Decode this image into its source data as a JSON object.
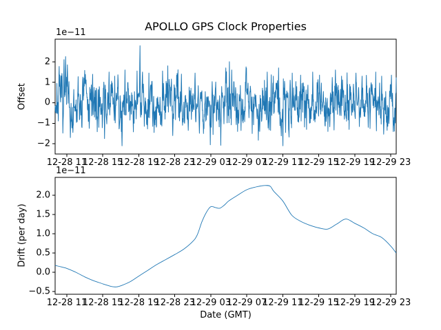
{
  "figure": {
    "background_color": "#ffffff",
    "text_color": "#000000",
    "spine_color": "#000000",
    "series_color": "#1f77b4"
  },
  "chart_data": [
    {
      "type": "line",
      "title": "APOLLO GPS Clock Properties",
      "ylabel": "Offset",
      "scale_label": "1e−11",
      "x_tick_hours": [
        11,
        15,
        19,
        23,
        27,
        31,
        35,
        39,
        43,
        47
      ],
      "x_tick_labels": [
        "12-28 11",
        "12-28 15",
        "12-28 19",
        "12-28 23",
        "12-29 03",
        "12-29 07",
        "12-29 11",
        "12-29 15",
        "12-29 19",
        "12-29 23"
      ],
      "xlim_hours": [
        9.7,
        47.61
      ],
      "ylim": [
        -2.5,
        3.1
      ],
      "y_tick_values": [
        2,
        1,
        0,
        -1,
        -2
      ],
      "y_tick_labels": [
        "2",
        "1",
        "0",
        "−1",
        "−2"
      ],
      "grid": false,
      "series": {
        "style": "noisy",
        "n": 1500,
        "seed": 7,
        "mean": 0.05,
        "ar": 0.6,
        "noise_scale": 0.85,
        "clip": [
          -2.3,
          2.85
        ],
        "spikes": [
          [
            0.026,
            2.1
          ],
          [
            0.031,
            2.25
          ],
          [
            0.036,
            1.85
          ],
          [
            0.045,
            -1.7
          ],
          [
            0.052,
            -1.45
          ],
          [
            0.085,
            1.2
          ],
          [
            0.1,
            -1.25
          ],
          [
            0.128,
            -1.2
          ],
          [
            0.145,
            -1.75
          ],
          [
            0.158,
            1.5
          ],
          [
            0.175,
            1.3
          ],
          [
            0.196,
            -2.1
          ],
          [
            0.205,
            1.6
          ],
          [
            0.24,
            1.55
          ],
          [
            0.2485,
            2.78
          ],
          [
            0.256,
            1.5
          ],
          [
            0.275,
            1.45
          ],
          [
            0.29,
            -1.45
          ],
          [
            0.315,
            1.55
          ],
          [
            0.33,
            1.8
          ],
          [
            0.345,
            -1.6
          ],
          [
            0.37,
            1.4
          ],
          [
            0.39,
            -1.35
          ],
          [
            0.41,
            1.45
          ],
          [
            0.435,
            -1.5
          ],
          [
            0.455,
            -2.05
          ],
          [
            0.463,
            -1.55
          ],
          [
            0.511,
            2.0
          ],
          [
            0.518,
            1.6
          ],
          [
            0.535,
            -1.4
          ],
          [
            0.56,
            1.75
          ],
          [
            0.578,
            -1.5
          ],
          [
            0.6,
            -1.4
          ],
          [
            0.622,
            1.5
          ],
          [
            0.64,
            1.3
          ],
          [
            0.655,
            1.7
          ],
          [
            0.668,
            -2.1
          ],
          [
            0.676,
            -1.45
          ],
          [
            0.695,
            1.45
          ],
          [
            0.72,
            1.35
          ],
          [
            0.737,
            -1.3
          ],
          [
            0.755,
            1.5
          ],
          [
            0.775,
            1.35
          ],
          [
            0.8,
            -1.4
          ],
          [
            0.822,
            1.6
          ],
          [
            0.84,
            1.3
          ],
          [
            0.862,
            -1.3
          ],
          [
            0.882,
            1.45
          ],
          [
            0.9,
            1.3
          ],
          [
            0.918,
            -1.2
          ],
          [
            0.94,
            1.5
          ],
          [
            0.957,
            1.3
          ],
          [
            0.975,
            -1.15
          ],
          [
            0.986,
            1.35
          ]
        ],
        "level_shifts": [
          [
            0.036,
            0.075,
            -0.55
          ],
          [
            0.13,
            0.165,
            -0.35
          ],
          [
            0.425,
            0.465,
            -0.5
          ],
          [
            0.575,
            0.61,
            -0.35
          ],
          [
            0.885,
            0.915,
            -0.3
          ]
        ]
      }
    },
    {
      "type": "line",
      "xlabel": "Date (GMT)",
      "ylabel": "Drift (per day)",
      "scale_label": "1e−11",
      "x_tick_hours": [
        11,
        15,
        19,
        23,
        27,
        31,
        35,
        39,
        43,
        47
      ],
      "x_tick_labels": [
        "12-28 11",
        "12-28 15",
        "12-28 19",
        "12-28 23",
        "12-29 03",
        "12-29 07",
        "12-29 11",
        "12-29 15",
        "12-29 19",
        "12-29 23"
      ],
      "xlim_hours": [
        9.7,
        47.61
      ],
      "ylim": [
        -0.57,
        2.46
      ],
      "y_tick_values": [
        2.0,
        1.5,
        1.0,
        0.5,
        0.0,
        -0.5
      ],
      "y_tick_labels": [
        "2.0",
        "1.5",
        "1.0",
        "0.5",
        "0.0",
        "−0.5"
      ],
      "grid": false,
      "points_hours_value": [
        [
          9.7,
          0.18
        ],
        [
          10,
          0.16
        ],
        [
          11,
          0.1
        ],
        [
          12,
          0.0
        ],
        [
          13,
          -0.12
        ],
        [
          14,
          -0.22
        ],
        [
          15,
          -0.3
        ],
        [
          16,
          -0.37
        ],
        [
          16.5,
          -0.38
        ],
        [
          17,
          -0.35
        ],
        [
          18,
          -0.25
        ],
        [
          19,
          -0.1
        ],
        [
          20,
          0.05
        ],
        [
          21,
          0.2
        ],
        [
          22,
          0.33
        ],
        [
          23,
          0.46
        ],
        [
          24,
          0.6
        ],
        [
          25,
          0.8
        ],
        [
          25.5,
          0.97
        ],
        [
          26,
          1.3
        ],
        [
          26.5,
          1.55
        ],
        [
          27,
          1.7
        ],
        [
          27.5,
          1.68
        ],
        [
          28,
          1.66
        ],
        [
          28.5,
          1.74
        ],
        [
          29,
          1.85
        ],
        [
          30,
          2.0
        ],
        [
          31,
          2.14
        ],
        [
          32,
          2.21
        ],
        [
          33,
          2.25
        ],
        [
          33.6,
          2.23
        ],
        [
          34,
          2.1
        ],
        [
          35,
          1.85
        ],
        [
          36,
          1.48
        ],
        [
          37,
          1.32
        ],
        [
          38,
          1.22
        ],
        [
          39,
          1.15
        ],
        [
          40,
          1.12
        ],
        [
          41,
          1.25
        ],
        [
          42,
          1.38
        ],
        [
          43,
          1.27
        ],
        [
          44,
          1.15
        ],
        [
          45,
          1.0
        ],
        [
          46,
          0.9
        ],
        [
          47,
          0.68
        ],
        [
          47.6,
          0.5
        ]
      ]
    }
  ]
}
